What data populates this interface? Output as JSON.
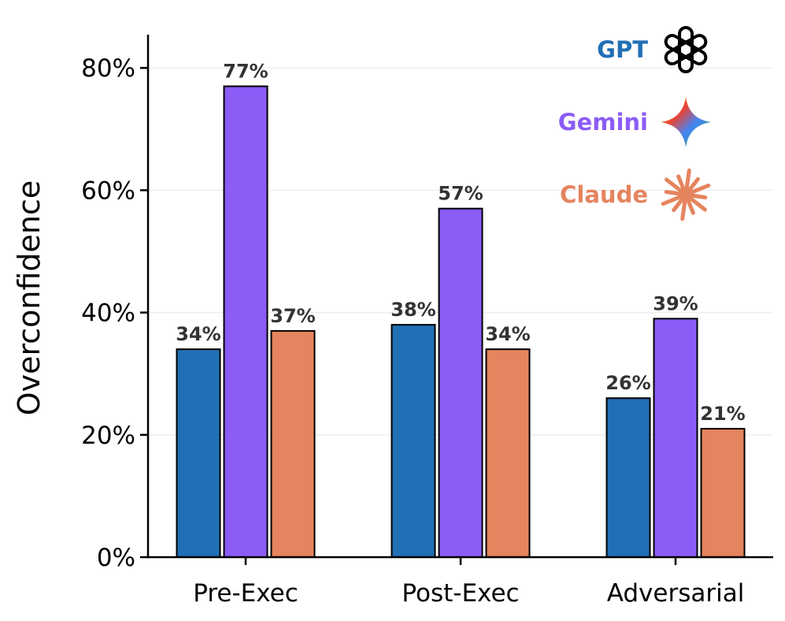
{
  "chart_data": {
    "type": "bar",
    "ylabel": "Overconfidence",
    "categories": [
      "Pre-Exec",
      "Post-Exec",
      "Adversarial"
    ],
    "series": [
      {
        "name": "GPT",
        "color": "#2170b5",
        "icon": "openai-logo-icon",
        "values": [
          34,
          38,
          26
        ],
        "labels": [
          "34%",
          "38%",
          "26%"
        ]
      },
      {
        "name": "Gemini",
        "color": "#8b5cf6",
        "icon": "gemini-star-icon",
        "values": [
          77,
          57,
          39
        ],
        "labels": [
          "77%",
          "57%",
          "39%"
        ]
      },
      {
        "name": "Claude",
        "color": "#e5845e",
        "icon": "claude-burst-icon",
        "values": [
          37,
          34,
          21
        ],
        "labels": [
          "37%",
          "34%",
          "21%"
        ]
      }
    ],
    "ylim": [
      0,
      86
    ],
    "yticks": [
      0,
      20,
      40,
      60,
      80
    ],
    "ytick_labels": [
      "0%",
      "20%",
      "40%",
      "60%",
      "80%"
    ],
    "grid": "horizontal",
    "legend_position": "top-right"
  }
}
